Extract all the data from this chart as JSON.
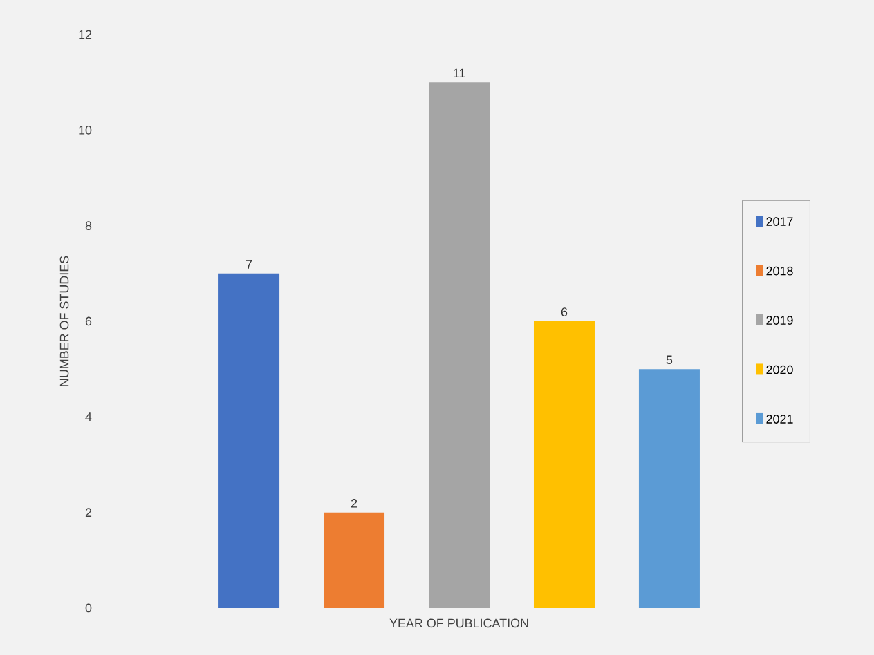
{
  "chart_data": {
    "type": "bar",
    "xlabel": "YEAR OF PUBLICATION",
    "ylabel": "NUMBER OF STUDIES",
    "categories": [
      null,
      null,
      null,
      null,
      null
    ],
    "stacked": true,
    "series": [
      {
        "name": "2017",
        "color": "#4472c4",
        "values": [
          7,
          null,
          null,
          null,
          null
        ]
      },
      {
        "name": "2018",
        "color": "#ed7d31",
        "values": [
          null,
          2,
          null,
          null,
          null
        ]
      },
      {
        "name": "2019",
        "color": "#a5a5a5",
        "values": [
          null,
          null,
          11,
          null,
          null
        ]
      },
      {
        "name": "2020",
        "color": "#ffc000",
        "values": [
          null,
          null,
          null,
          6,
          null
        ]
      },
      {
        "name": "2021",
        "color": "#5b9bd5",
        "values": [
          null,
          null,
          null,
          null,
          5
        ]
      }
    ],
    "ylim": [
      0,
      12
    ],
    "yticks": [
      0,
      2,
      4,
      6,
      8,
      10,
      12
    ],
    "data_labels": true,
    "legend": "right",
    "grid": false
  }
}
